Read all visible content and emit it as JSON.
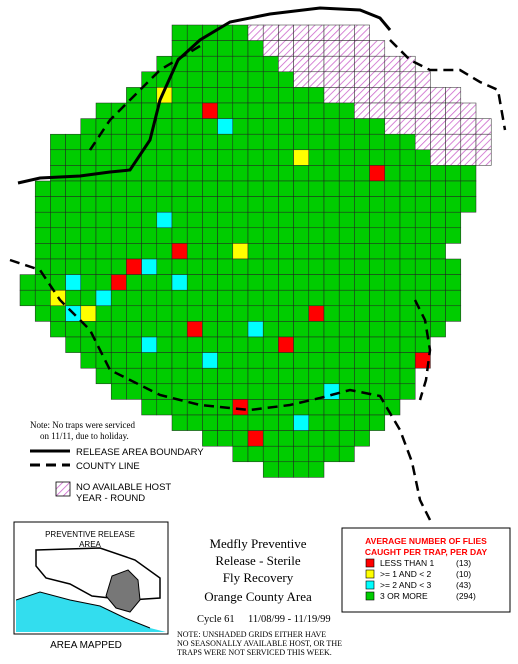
{
  "note": {
    "line1": "Note: No traps were serviced",
    "line2": "on 11/11, due to holiday."
  },
  "legend_lines": {
    "release_area_boundary": "RELEASE AREA BOUNDARY",
    "county_line": "COUNTY LINE",
    "no_host_line1": "NO AVAILABLE HOST",
    "no_host_line2": "YEAR - ROUND"
  },
  "inset": {
    "title_line1": "PREVENTIVE RELEASE",
    "title_line2": "AREA",
    "caption": "AREA MAPPED"
  },
  "map_title": {
    "line1": "Medfly Preventive",
    "line2": "Release - Sterile",
    "line3": "Fly Recovery",
    "line4": "Orange County Area",
    "cycle": "Cycle 61",
    "dates": "11/08/99 - 11/19/99"
  },
  "footnote": {
    "line1": "NOTE: UNSHADED GRIDS EITHER HAVE",
    "line2": "NO SEASONALLY AVAILABLE HOST, OR THE",
    "line3": "TRAPS WERE NOT SERVICED THIS WEEK."
  },
  "fly_legend": {
    "title_line1": "AVERAGE NUMBER OF FLIES",
    "title_line2": "CAUGHT PER TRAP, PER DAY",
    "title_color": "#ff0000",
    "items": [
      {
        "label": "LESS THAN 1",
        "count": "(13)",
        "color": "#ff0000"
      },
      {
        "label": ">= 1 AND < 2",
        "count": "(10)",
        "color": "#ffff00"
      },
      {
        "label": ">= 2 AND < 3",
        "count": "(43)",
        "color": "#00ffff"
      },
      {
        "label": "3 OR MORE",
        "count": "(294)",
        "color": "#00cc00"
      }
    ]
  },
  "colors": {
    "green": "#00cc00",
    "yellow": "#ffff00",
    "cyan": "#00ffff",
    "red": "#ff0000",
    "no_host_hatch": "#cc66cc",
    "water": "#33ddee",
    "mapped_area": "#777777"
  }
}
